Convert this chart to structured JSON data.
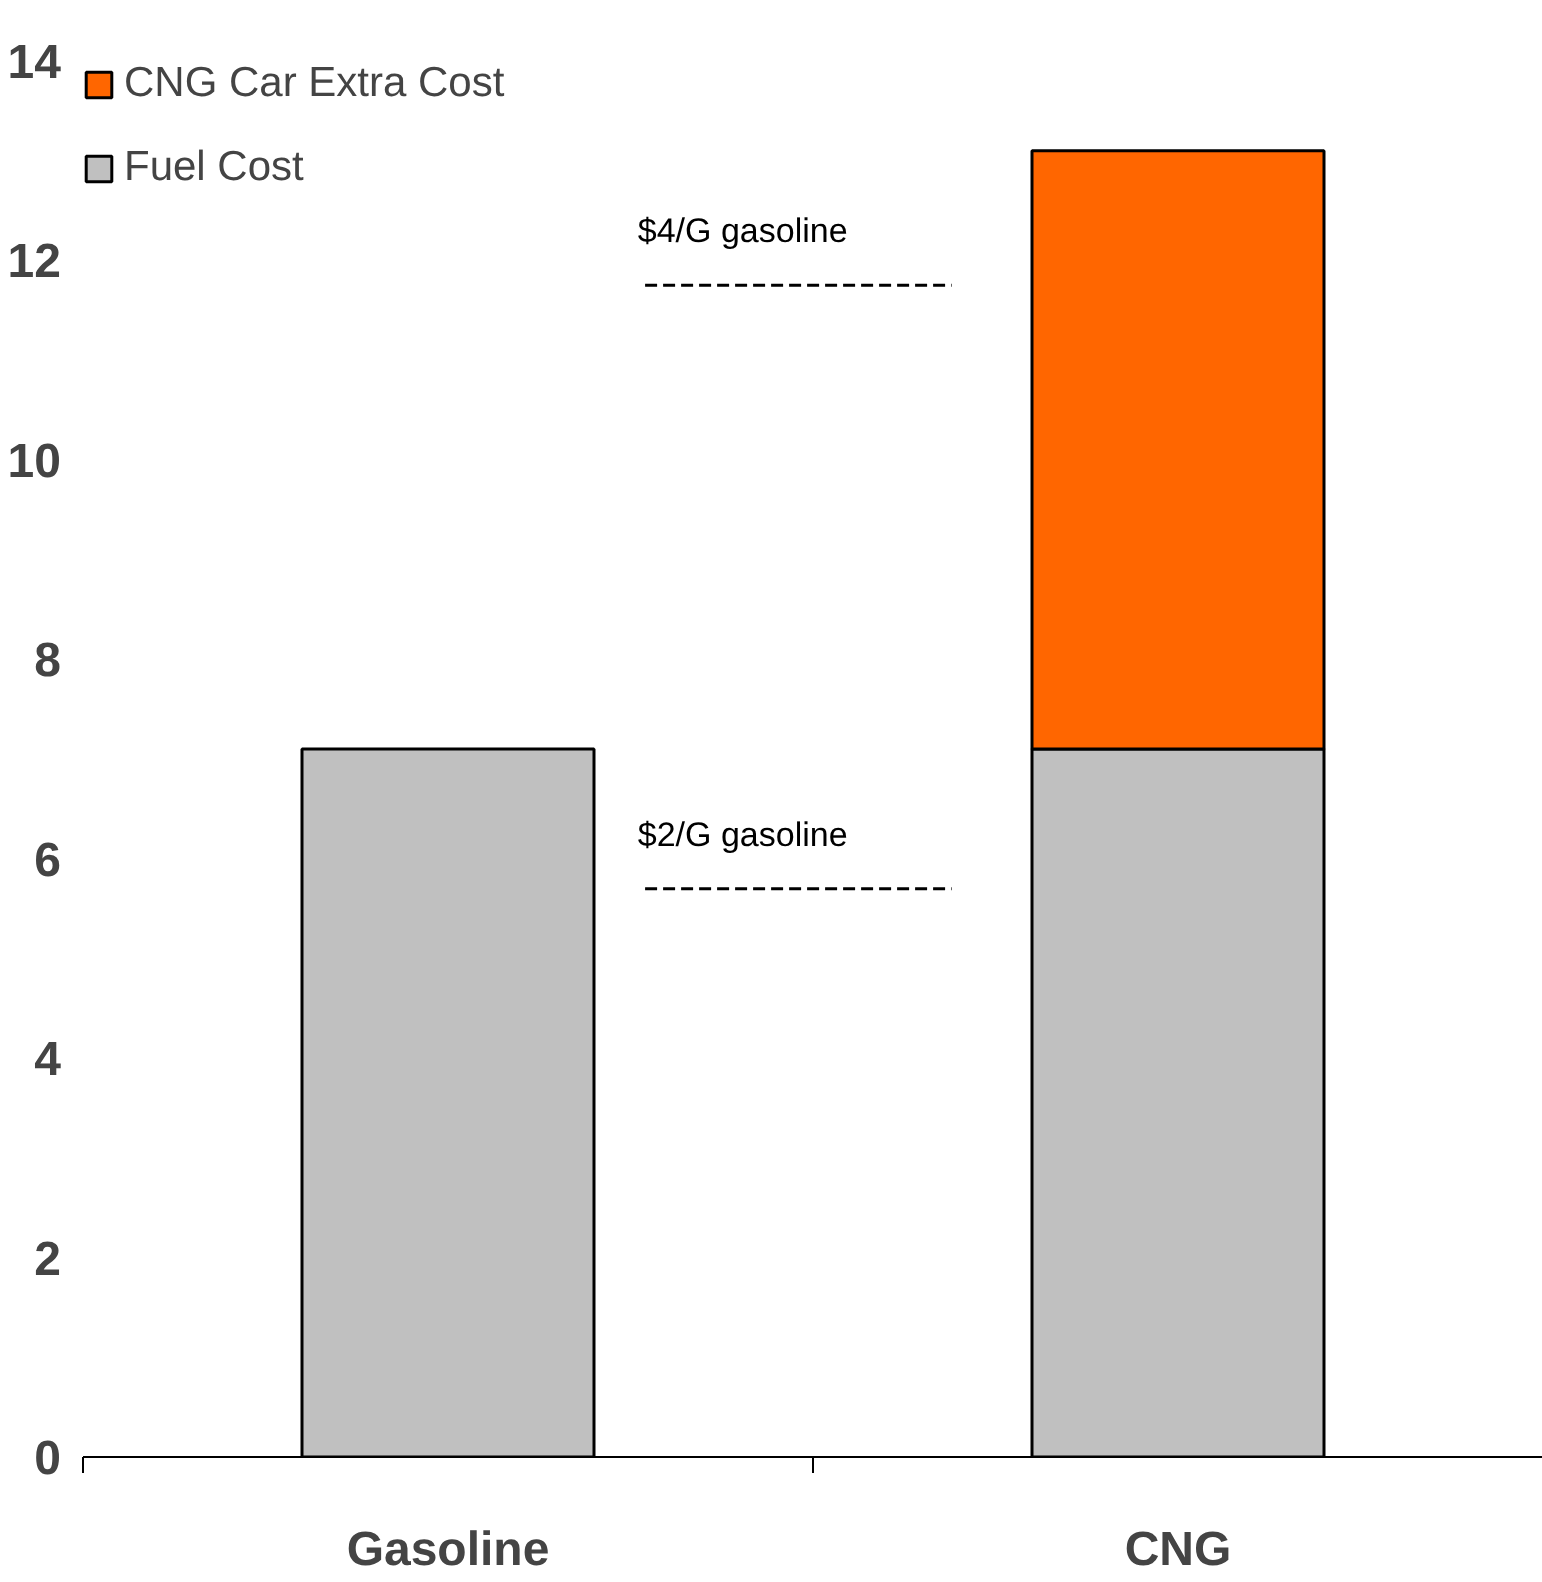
{
  "chart_data": {
    "type": "bar",
    "stacked": true,
    "categories": [
      "Gasoline",
      "CNG"
    ],
    "series": [
      {
        "name": "Fuel Cost",
        "color": "#c0c0c0",
        "values": [
          7.1,
          7.1
        ]
      },
      {
        "name": "CNG Car Extra Cost",
        "color": "#ff6600",
        "values": [
          null,
          6.0
        ]
      }
    ],
    "ylim": [
      0,
      14
    ],
    "yticks": [
      0,
      2,
      4,
      6,
      8,
      10,
      12,
      14
    ],
    "grid": false,
    "legend": "top left",
    "ref_lines": [
      {
        "axis": "y",
        "value": 11.75,
        "label": "$4/G gasoline",
        "line_style": "dashed",
        "color": "#000000"
      },
      {
        "axis": "y",
        "value": 5.7,
        "label": "$2/G gasoline",
        "line_style": "dashed",
        "color": "#000000"
      }
    ]
  }
}
